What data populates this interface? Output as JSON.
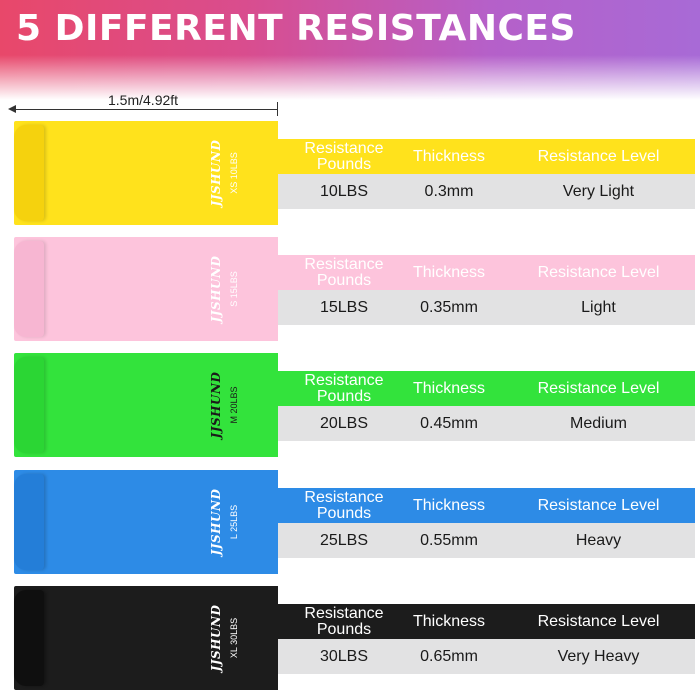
{
  "title": "5 DIFFERENT RESISTANCES",
  "length_label": "1.5m/4.92ft",
  "headers": {
    "pounds": "Resistance\nPounds",
    "thickness": "Thickness",
    "level": "Resistance Level"
  },
  "bands": [
    {
      "color_name": "yellow",
      "color": "#ffe21c",
      "brand": "JJSHUND",
      "size_code": "XS 10LBS",
      "pounds": "10LBS",
      "thickness": "0.3mm",
      "level": "Very Light"
    },
    {
      "color_name": "pink",
      "color": "#fdc4dc",
      "brand": "JJSHUND",
      "size_code": "S 15LBS",
      "pounds": "15LBS",
      "thickness": "0.35mm",
      "level": "Light"
    },
    {
      "color_name": "green",
      "color": "#33e33c",
      "brand": "JJSHUND",
      "size_code": "M 20LBS",
      "pounds": "20LBS",
      "thickness": "0.45mm",
      "level": "Medium"
    },
    {
      "color_name": "blue",
      "color": "#2d8be6",
      "brand": "JJSHUND",
      "size_code": "L 25LBS",
      "pounds": "25LBS",
      "thickness": "0.55mm",
      "level": "Heavy"
    },
    {
      "color_name": "black",
      "color": "#1c1c1c",
      "brand": "JJSHUND",
      "size_code": "XL 30LBS",
      "pounds": "30LBS",
      "thickness": "0.65mm",
      "level": "Very Heavy"
    }
  ]
}
